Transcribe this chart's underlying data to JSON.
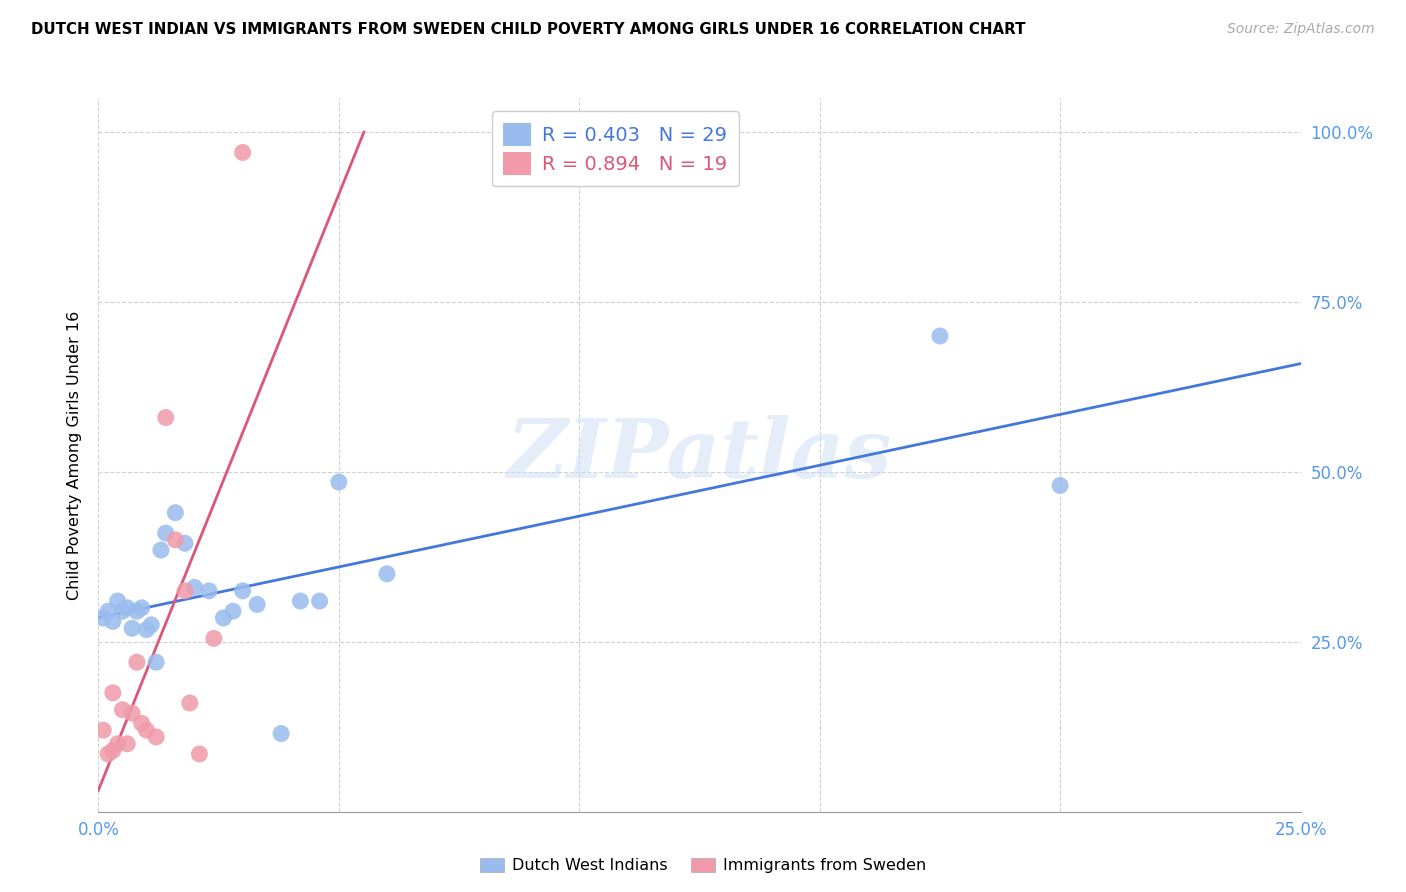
{
  "title": "DUTCH WEST INDIAN VS IMMIGRANTS FROM SWEDEN CHILD POVERTY AMONG GIRLS UNDER 16 CORRELATION CHART",
  "source": "Source: ZipAtlas.com",
  "ylabel": "Child Poverty Among Girls Under 16",
  "watermark_text": "ZIPatlas",
  "xlim": [
    0.0,
    0.25
  ],
  "ylim": [
    0.0,
    1.05
  ],
  "xtick_vals": [
    0.0,
    0.25
  ],
  "xtick_labels": [
    "0.0%",
    "25.0%"
  ],
  "xtick_minor_vals": [
    0.05,
    0.1,
    0.15,
    0.2
  ],
  "ytick_vals": [
    0.25,
    0.5,
    0.75,
    1.0
  ],
  "ytick_labels": [
    "25.0%",
    "50.0%",
    "75.0%",
    "100.0%"
  ],
  "blue_dot_color": "#99bbee",
  "pink_dot_color": "#f09aaa",
  "blue_line_color": "#4477dd",
  "pink_line_color": "#dd5577",
  "tick_color": "#5599ee",
  "legend_blue_R": "R = 0.403",
  "legend_blue_N": "N = 29",
  "legend_pink_R": "R = 0.894",
  "legend_pink_N": "N = 19",
  "legend_label_blue": "Dutch West Indians",
  "legend_label_pink": "Immigrants from Sweden",
  "dutch_x": [
    0.001,
    0.002,
    0.003,
    0.004,
    0.005,
    0.006,
    0.007,
    0.008,
    0.009,
    0.01,
    0.011,
    0.012,
    0.013,
    0.014,
    0.016,
    0.018,
    0.02,
    0.023,
    0.026,
    0.028,
    0.03,
    0.033,
    0.038,
    0.042,
    0.046,
    0.05,
    0.06,
    0.175,
    0.2
  ],
  "dutch_y": [
    0.285,
    0.295,
    0.28,
    0.31,
    0.295,
    0.3,
    0.27,
    0.295,
    0.3,
    0.268,
    0.275,
    0.22,
    0.385,
    0.41,
    0.44,
    0.395,
    0.33,
    0.325,
    0.285,
    0.295,
    0.325,
    0.305,
    0.115,
    0.31,
    0.31,
    0.485,
    0.35,
    0.7,
    0.48
  ],
  "sweden_x": [
    0.001,
    0.002,
    0.003,
    0.003,
    0.004,
    0.005,
    0.006,
    0.007,
    0.008,
    0.009,
    0.01,
    0.012,
    0.014,
    0.016,
    0.018,
    0.019,
    0.021,
    0.024,
    0.03
  ],
  "sweden_y": [
    0.12,
    0.085,
    0.09,
    0.175,
    0.1,
    0.15,
    0.1,
    0.145,
    0.22,
    0.13,
    0.12,
    0.11,
    0.58,
    0.4,
    0.325,
    0.16,
    0.085,
    0.255,
    0.97
  ]
}
